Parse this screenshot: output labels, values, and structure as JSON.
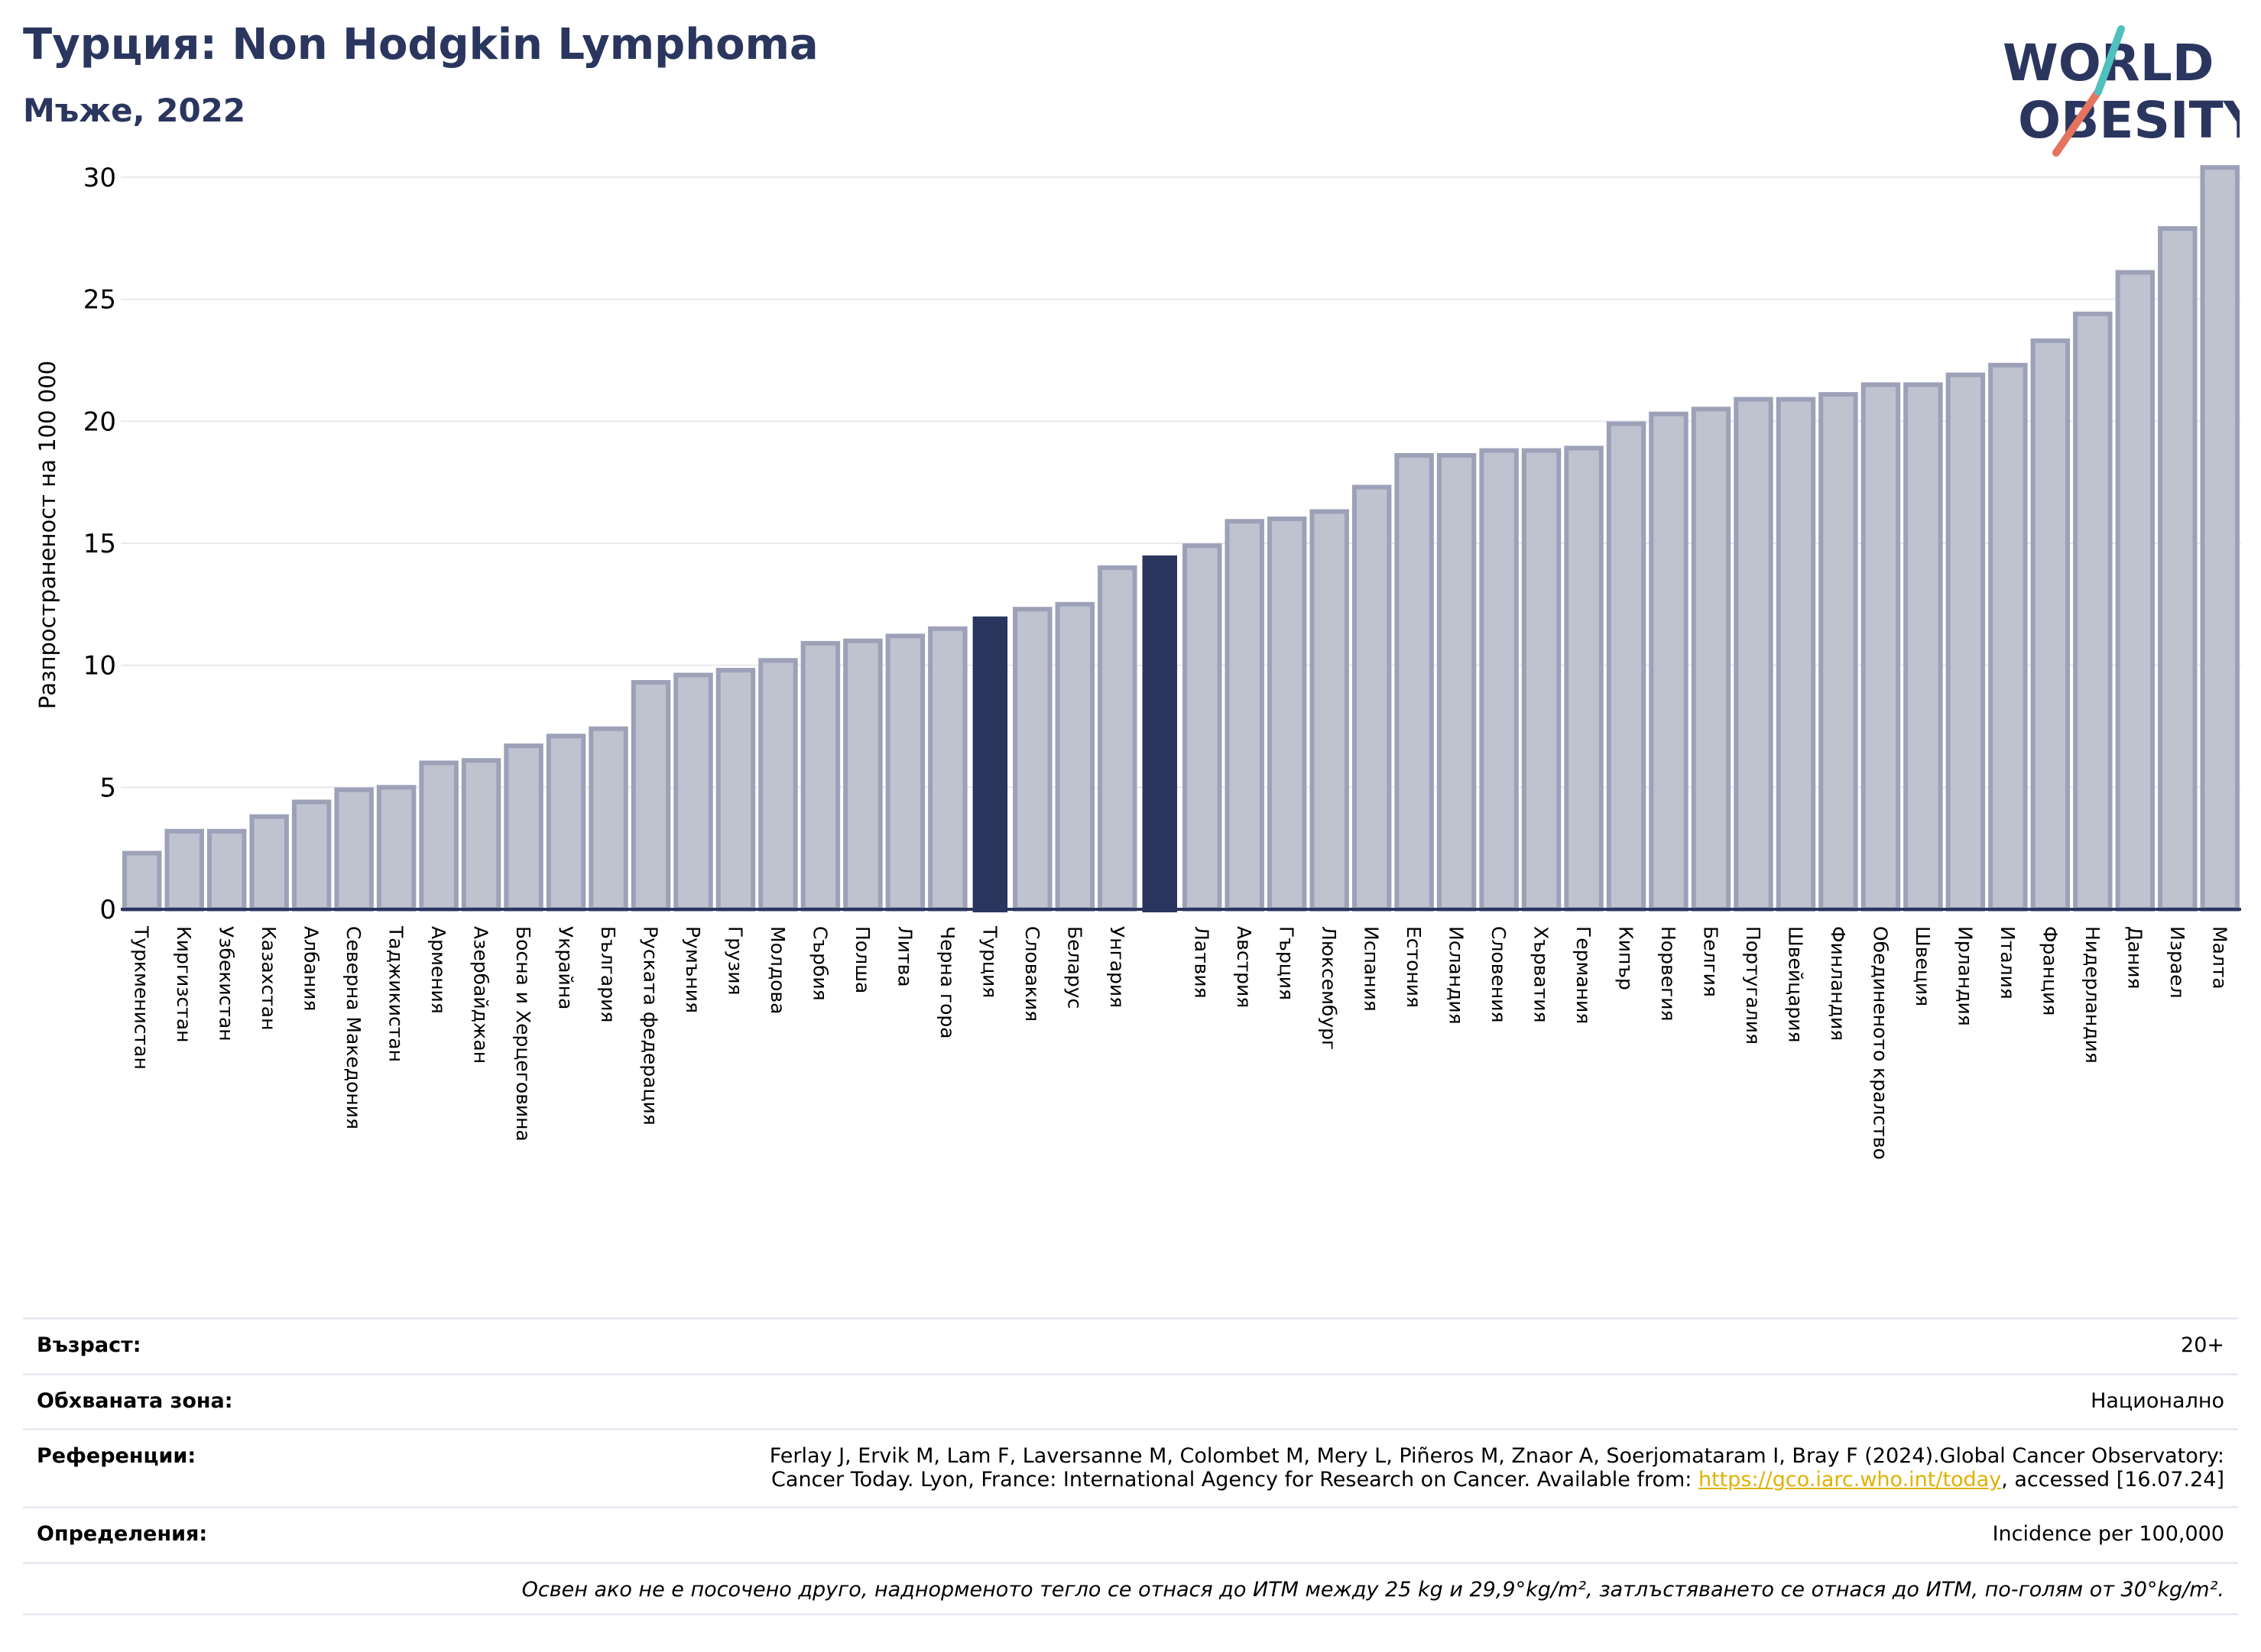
{
  "header": {
    "title": "Турция: Non Hodgkin Lymphoma",
    "subtitle": "Мъже, 2022"
  },
  "logo": {
    "line1": "WORLD",
    "line2": "OBESITY",
    "slash_colors": [
      "#e4735f",
      "#4fc0bd"
    ]
  },
  "colors": {
    "bar": "#bfc2cf",
    "bar_edge": "#9da1b8",
    "highlight": "#2b365f",
    "axis": "#2b365f",
    "grid": "#e8e8ee"
  },
  "chart_data": {
    "type": "bar",
    "ylabel": "Разпространеност  на 100 000",
    "ylim": [
      0,
      31
    ],
    "yticks": [
      0,
      5,
      10,
      15,
      20,
      25,
      30
    ],
    "grid": "horizontal",
    "categories": [
      "Туркменистан",
      "Киргизстан",
      "Узбекистан",
      "Казахстан",
      "Албания",
      "Северна Македония",
      "Таджикистан",
      "Армения",
      "Азербайджан",
      "Босна и Херцеговина",
      "Украйна",
      "България",
      "Руската федерация",
      "Румъния",
      "Грузия",
      "Молдова",
      "Сърбия",
      "Полша",
      "Литва",
      "Черна гора",
      "Турция",
      "Словакия",
      "Беларус",
      "Унгария",
      "",
      "Латвия",
      "Австрия",
      "Гърция",
      "Люксембург",
      "Испания",
      "Естония",
      "Исландия",
      "Словения",
      "Хърватия",
      "Германия",
      "Кипър",
      "Норвегия",
      "Белгия",
      "Португалия",
      "Швейцария",
      "Финландия",
      "Обединеното кралство",
      "Швеция",
      "Ирландия",
      "Италия",
      "Франция",
      "Нидерландия",
      "Дания",
      "Израел",
      "Малта"
    ],
    "values": [
      2.3,
      3.2,
      3.2,
      3.8,
      4.4,
      4.9,
      5.0,
      6.0,
      6.1,
      6.7,
      7.1,
      7.4,
      9.3,
      9.6,
      9.8,
      10.2,
      10.9,
      11.0,
      11.2,
      11.5,
      12.0,
      12.3,
      12.5,
      14.0,
      14.5,
      14.9,
      15.9,
      16.0,
      16.3,
      17.3,
      18.6,
      18.6,
      18.8,
      18.8,
      18.9,
      19.9,
      20.3,
      20.5,
      20.9,
      20.9,
      21.1,
      21.5,
      21.5,
      21.9,
      22.3,
      23.3,
      24.4,
      26.1,
      27.9,
      30.4
    ],
    "highlight_indices": [
      20,
      24
    ]
  },
  "info": {
    "age_label": "Възраст:",
    "age_value": "20+",
    "area_label": "Обхваната зона:",
    "area_value": "Национално",
    "ref_label": "Референции:",
    "ref_line1": "Ferlay J, Ervik M, Lam F, Laversanne M, Colombet M, Mery L, Piñeros M, Znaor A, Soerjomataram I, Bray F (2024).Global Cancer Observatory:",
    "ref_line2_pre": "Cancer Today. Lyon, France: International Agency for Research on Cancer. Available from: ",
    "ref_link": "https://gco.iarc.who.int/today",
    "ref_line2_post": ", accessed [16.07.24]",
    "def_label": "Определения:",
    "def_value": "Incidence per 100,000",
    "note": "Освен ако не е посочено друго, наднорменото тегло се отнася до ИТМ между 25 kg и 29,9°kg/m², затлъстяването се отнася до ИТМ, по-голям от 30°kg/m²."
  }
}
